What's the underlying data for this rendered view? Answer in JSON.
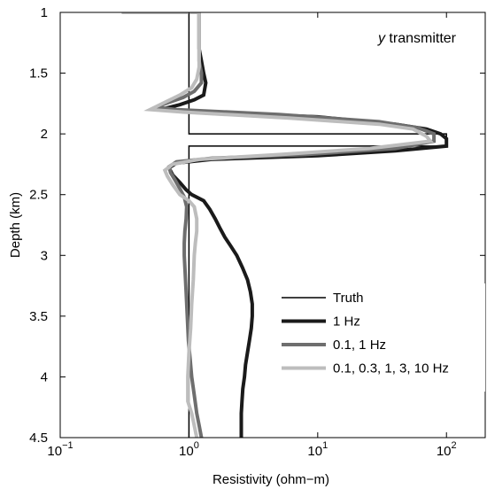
{
  "chart_data": {
    "type": "line",
    "annotation": {
      "prefix": "y",
      "suffix": " transmitter"
    },
    "xlabel": "Resistivity (ohm−m)",
    "ylabel": "Depth (km)",
    "x_scale": "log",
    "xlim": [
      0.1,
      200
    ],
    "ylim": [
      1,
      4.5
    ],
    "y_inverted": true,
    "grid": false,
    "legend_position": "lower-right",
    "x_ticks": [
      {
        "value": 0.1,
        "base": "10",
        "exp": "−1"
      },
      {
        "value": 1,
        "base": "10",
        "exp": "0"
      },
      {
        "value": 10,
        "base": "10",
        "exp": "1"
      },
      {
        "value": 100,
        "base": "10",
        "exp": "2"
      }
    ],
    "y_ticks": [
      {
        "value": 1,
        "label": "1"
      },
      {
        "value": 1.5,
        "label": "1.5"
      },
      {
        "value": 2,
        "label": "2"
      },
      {
        "value": 2.5,
        "label": "2.5"
      },
      {
        "value": 3,
        "label": "3"
      },
      {
        "value": 3.5,
        "label": "3.5"
      },
      {
        "value": 4,
        "label": "4"
      },
      {
        "value": 4.5,
        "label": "4.5"
      }
    ],
    "series": [
      {
        "name": "Truth",
        "color": "#000000",
        "width": 1.5,
        "points": [
          [
            1,
            1.0
          ],
          [
            1,
            2.0
          ],
          [
            100,
            2.0
          ],
          [
            100,
            2.1
          ],
          [
            1,
            2.1
          ],
          [
            1,
            4.5
          ]
        ]
      },
      {
        "name": "1 Hz",
        "color": "#1a1a1a",
        "width": 4,
        "points": [
          [
            1.2,
            1.0
          ],
          [
            1.2,
            1.3
          ],
          [
            1.25,
            1.4
          ],
          [
            1.3,
            1.5
          ],
          [
            1.35,
            1.58
          ],
          [
            1.3,
            1.68
          ],
          [
            1.1,
            1.72
          ],
          [
            0.85,
            1.76
          ],
          [
            0.6,
            1.8
          ],
          [
            1.2,
            1.82
          ],
          [
            10,
            1.86
          ],
          [
            40,
            1.92
          ],
          [
            70,
            1.96
          ],
          [
            90,
            2.0
          ],
          [
            100,
            2.04
          ],
          [
            100,
            2.1
          ],
          [
            40,
            2.14
          ],
          [
            10,
            2.18
          ],
          [
            1.5,
            2.21
          ],
          [
            0.8,
            2.24
          ],
          [
            0.7,
            2.28
          ],
          [
            0.75,
            2.34
          ],
          [
            0.85,
            2.4
          ],
          [
            0.95,
            2.46
          ],
          [
            1.05,
            2.5
          ],
          [
            1.3,
            2.55
          ],
          [
            1.45,
            2.62
          ],
          [
            1.6,
            2.7
          ],
          [
            1.75,
            2.78
          ],
          [
            1.9,
            2.85
          ],
          [
            2.1,
            2.92
          ],
          [
            2.35,
            3.0
          ],
          [
            2.6,
            3.1
          ],
          [
            2.85,
            3.2
          ],
          [
            3.0,
            3.3
          ],
          [
            3.1,
            3.4
          ],
          [
            3.1,
            3.5
          ],
          [
            3.05,
            3.6
          ],
          [
            2.95,
            3.7
          ],
          [
            2.85,
            3.8
          ],
          [
            2.75,
            3.9
          ],
          [
            2.7,
            4.0
          ],
          [
            2.62,
            4.1
          ],
          [
            2.58,
            4.2
          ],
          [
            2.55,
            4.3
          ],
          [
            2.55,
            4.4
          ],
          [
            2.55,
            4.5
          ]
        ]
      },
      {
        "name": "0.1, 1 Hz",
        "color": "#6e6e6e",
        "width": 4,
        "points": [
          [
            1.2,
            1.0
          ],
          [
            1.2,
            1.3
          ],
          [
            1.2,
            1.4
          ],
          [
            1.25,
            1.5
          ],
          [
            1.25,
            1.58
          ],
          [
            1.1,
            1.65
          ],
          [
            0.9,
            1.7
          ],
          [
            0.7,
            1.74
          ],
          [
            0.55,
            1.78
          ],
          [
            0.8,
            1.8
          ],
          [
            5,
            1.84
          ],
          [
            30,
            1.9
          ],
          [
            60,
            1.95
          ],
          [
            80,
            2.0
          ],
          [
            80,
            2.06
          ],
          [
            40,
            2.12
          ],
          [
            8,
            2.17
          ],
          [
            1.5,
            2.2
          ],
          [
            0.8,
            2.23
          ],
          [
            0.7,
            2.27
          ],
          [
            0.72,
            2.32
          ],
          [
            0.78,
            2.38
          ],
          [
            0.85,
            2.45
          ],
          [
            0.92,
            2.52
          ],
          [
            0.96,
            2.6
          ],
          [
            0.95,
            2.7
          ],
          [
            0.93,
            2.8
          ],
          [
            0.92,
            2.9
          ],
          [
            0.92,
            3.0
          ],
          [
            0.93,
            3.1
          ],
          [
            0.95,
            3.3
          ],
          [
            0.97,
            3.5
          ],
          [
            0.99,
            3.7
          ],
          [
            1.02,
            3.85
          ],
          [
            1.05,
            4.0
          ],
          [
            1.1,
            4.15
          ],
          [
            1.15,
            4.3
          ],
          [
            1.2,
            4.4
          ],
          [
            1.25,
            4.5
          ]
        ]
      },
      {
        "name": "0.1, 0.3, 1, 3, 10 Hz",
        "color": "#bdbdbd",
        "width": 4,
        "points": [
          [
            0.3,
            1.0
          ],
          [
            1.2,
            1.0
          ],
          [
            1.2,
            1.3
          ],
          [
            1.2,
            1.45
          ],
          [
            1.15,
            1.55
          ],
          [
            1.05,
            1.62
          ],
          [
            0.85,
            1.68
          ],
          [
            0.65,
            1.74
          ],
          [
            0.5,
            1.8
          ],
          [
            0.9,
            1.82
          ],
          [
            6,
            1.87
          ],
          [
            30,
            1.92
          ],
          [
            55,
            1.96
          ],
          [
            70,
            2.02
          ],
          [
            75,
            2.06
          ],
          [
            25,
            2.12
          ],
          [
            5,
            2.17
          ],
          [
            1.2,
            2.21
          ],
          [
            0.75,
            2.25
          ],
          [
            0.65,
            2.3
          ],
          [
            0.68,
            2.35
          ],
          [
            0.75,
            2.42
          ],
          [
            0.85,
            2.5
          ],
          [
            1.0,
            2.55
          ],
          [
            1.1,
            2.6
          ],
          [
            1.15,
            2.7
          ],
          [
            1.15,
            2.8
          ],
          [
            1.12,
            2.9
          ],
          [
            1.1,
            3.0
          ],
          [
            1.08,
            3.2
          ],
          [
            1.05,
            3.4
          ],
          [
            1.03,
            3.6
          ],
          [
            1.0,
            3.8
          ],
          [
            0.98,
            4.0
          ],
          [
            0.98,
            4.2
          ],
          [
            1.05,
            4.3
          ],
          [
            1.1,
            4.4
          ],
          [
            1.15,
            4.5
          ]
        ]
      }
    ]
  }
}
